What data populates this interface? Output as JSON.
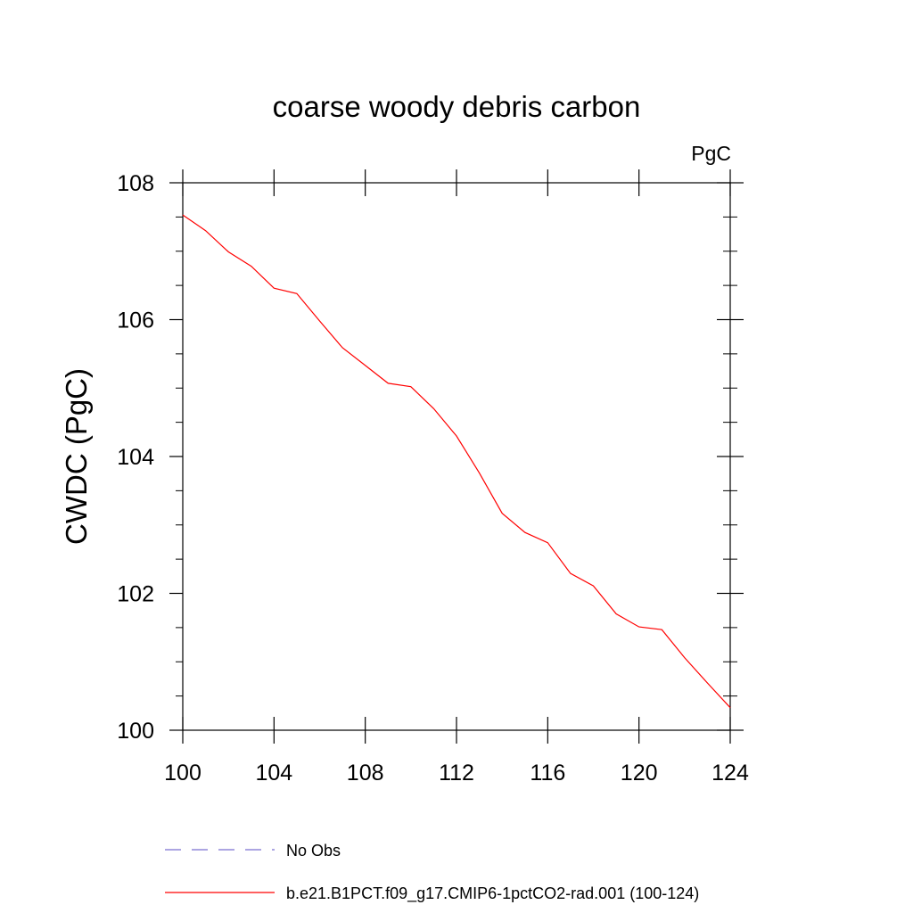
{
  "chart_data": {
    "type": "line",
    "title": "coarse woody debris carbon",
    "units_label": "PgC",
    "xlabel": "",
    "ylabel": "CWDC  (PgC)",
    "xlim": [
      100,
      124
    ],
    "ylim": [
      100,
      108
    ],
    "x_ticks": [
      100,
      104,
      108,
      112,
      116,
      120,
      124
    ],
    "y_ticks": [
      100,
      102,
      104,
      106,
      108
    ],
    "grid": false,
    "legend_position": "bottom",
    "series": [
      {
        "name": "b.e21.B1PCT.f09_g17.CMIP6-1pctCO2-rad.001 (100-124)",
        "color": "#ff0000",
        "style": "solid",
        "x": [
          100,
          101,
          102,
          103,
          104,
          105,
          106,
          107,
          108,
          109,
          110,
          111,
          112,
          113,
          114,
          115,
          116,
          117,
          118,
          119,
          120,
          121,
          122,
          123,
          124
        ],
        "y": [
          107.53,
          107.3,
          106.99,
          106.78,
          106.46,
          106.38,
          105.98,
          105.59,
          105.33,
          105.07,
          105.02,
          104.7,
          104.3,
          103.76,
          103.17,
          102.89,
          102.74,
          102.29,
          102.11,
          101.7,
          101.51,
          101.47,
          101.06,
          100.69,
          100.33
        ]
      },
      {
        "name": "No Obs",
        "color": "#7b6fd0",
        "style": "dashed",
        "x": [],
        "y": []
      }
    ]
  }
}
